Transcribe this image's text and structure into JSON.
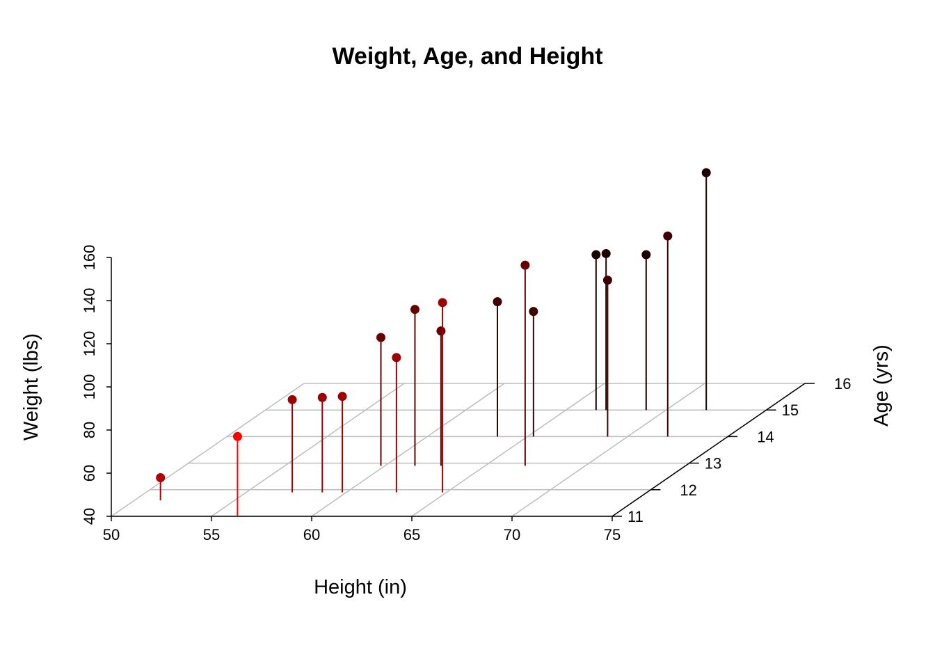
{
  "chart_data": {
    "type": "scatter",
    "subtype": "3d-scatter-with-drop-lines",
    "title": "Weight, Age, and Height",
    "xlabel": "Height (in)",
    "ylabel": "Age (yrs)",
    "zlabel": "Weight (lbs)",
    "xlim": [
      50,
      75
    ],
    "ylim": [
      11,
      16
    ],
    "zlim": [
      40,
      160
    ],
    "x_ticks": [
      "50",
      "55",
      "60",
      "65",
      "70",
      "75"
    ],
    "y_ticks": [
      "11",
      "12",
      "13",
      "14",
      "15",
      "16"
    ],
    "z_ticks": [
      "40",
      "60",
      "80",
      "100",
      "120",
      "140",
      "160"
    ],
    "grid": true,
    "color_by": "Age (yrs)",
    "color_scale": [
      "#ff0000",
      "#000000"
    ],
    "points": [
      {
        "height": 51.3,
        "age": 11.6,
        "weight": 50.5
      },
      {
        "height": 56.3,
        "age": 11.0,
        "weight": 77.0
      },
      {
        "height": 57.3,
        "age": 11.9,
        "weight": 83.0
      },
      {
        "height": 58.8,
        "age": 11.9,
        "weight": 84.0
      },
      {
        "height": 59.8,
        "age": 12.9,
        "weight": 99.5
      },
      {
        "height": 59.8,
        "age": 11.9,
        "weight": 84.5
      },
      {
        "height": 61.5,
        "age": 12.9,
        "weight": 112.5
      },
      {
        "height": 62.5,
        "age": 11.9,
        "weight": 102.5
      },
      {
        "height": 62.8,
        "age": 12.9,
        "weight": 102.5
      },
      {
        "height": 64.8,
        "age": 11.9,
        "weight": 128.0
      },
      {
        "height": 65.3,
        "age": 14.0,
        "weight": 98.0
      },
      {
        "height": 66.5,
        "age": 15.0,
        "weight": 112.0
      },
      {
        "height": 67.0,
        "age": 12.9,
        "weight": 133.0
      },
      {
        "height": 67.0,
        "age": 15.0,
        "weight": 112.5
      },
      {
        "height": 69.0,
        "age": 14.0,
        "weight": 112.5
      },
      {
        "height": 72.0,
        "age": 15.0,
        "weight": 150.0
      },
      {
        "height": 69.0,
        "age": 15.0,
        "weight": 112.0
      },
      {
        "height": 63.5,
        "age": 14.0,
        "weight": 102.5
      },
      {
        "height": 72.0,
        "age": 14.0,
        "weight": 133.0
      }
    ]
  }
}
